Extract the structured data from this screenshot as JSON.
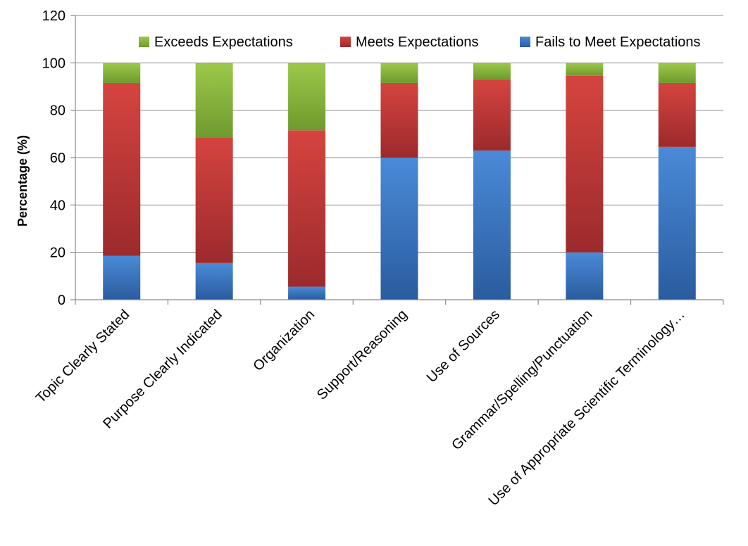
{
  "chart_data": {
    "type": "bar",
    "stacked": true,
    "title": "",
    "xlabel": "",
    "ylabel": "Percentage (%)",
    "ylim": [
      0,
      120
    ],
    "yticks": [
      0,
      20,
      40,
      60,
      80,
      100,
      120
    ],
    "grid": true,
    "legend_position": "top-right",
    "categories": [
      "Topic Clearly Stated",
      "Purpose Clearly Indicated",
      "Organization",
      "Support/Reasoning",
      "Use of Sources",
      "Grammar/Spelling/Punctuation",
      "Use of Appropriate Scientific Terminology…"
    ],
    "series": [
      {
        "name": "Fails to Meet Expectations",
        "color": "#3a74c4",
        "values": [
          18.5,
          15.5,
          5.5,
          60,
          63,
          20,
          64.5
        ]
      },
      {
        "name": "Meets Expectations",
        "color": "#c0393b",
        "values": [
          73,
          53,
          66,
          31.5,
          30,
          74.5,
          27
        ]
      },
      {
        "name": "Exceeds Expectations",
        "color": "#8fbb3d",
        "values": [
          8.5,
          31.5,
          28.5,
          8.5,
          7,
          5.5,
          8.5
        ]
      }
    ],
    "legend_order": [
      "Exceeds Expectations",
      "Meets Expectations",
      "Fails to Meet Expectations"
    ]
  }
}
